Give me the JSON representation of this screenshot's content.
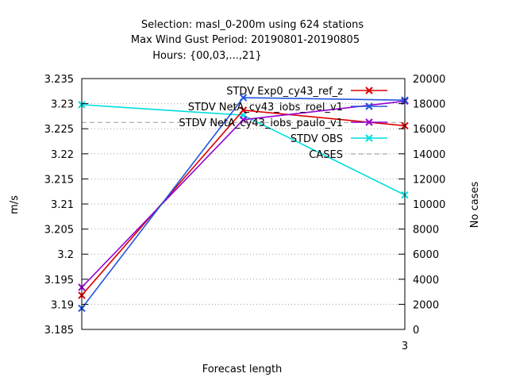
{
  "chart_data": {
    "type": "line",
    "title": [
      "Selection: masl_0-200m using   624 stations",
      "Max Wind Gust   Period: 20190801-20190805",
      "Hours: {00,03,...,21}"
    ],
    "xlabel": "Forecast length",
    "ylabel": "m/s",
    "y2label": "No cases",
    "xlim": [
      0,
      3
    ],
    "ylim": [
      3.185,
      3.235
    ],
    "y2lim": [
      0,
      20000
    ],
    "x_ticks": [
      3
    ],
    "y_ticks": [
      "3.185",
      "3.19",
      "3.195",
      "3.2",
      "3.205",
      "3.21",
      "3.215",
      "3.22",
      "3.225",
      "3.23",
      "3.235"
    ],
    "y2_ticks": [
      "0",
      "2000",
      "4000",
      "6000",
      "8000",
      "10000",
      "12000",
      "14000",
      "16000",
      "18000",
      "20000"
    ],
    "legend_position": "top-right",
    "series": [
      {
        "name": "STDV Exp0_cy43_ref_z",
        "axis": "y",
        "color": "#dd0000",
        "marker": "x",
        "x": [
          0,
          1.5,
          3
        ],
        "values": [
          3.1918,
          3.2287,
          3.2256
        ]
      },
      {
        "name": "STDV NetA_cy43_iobs_roel_v1",
        "axis": "y",
        "color": "#2255dd",
        "marker": "x",
        "x": [
          0,
          1.5,
          3
        ],
        "values": [
          3.1892,
          3.2312,
          3.2307
        ]
      },
      {
        "name": "STDV NetA_cy43_iobs_paulo_v1",
        "axis": "y",
        "color": "#9400d3",
        "marker": "x",
        "x": [
          0,
          1.5,
          3
        ],
        "values": [
          3.1934,
          3.2268,
          3.2305
        ]
      },
      {
        "name": "STDV OBS",
        "axis": "y",
        "color": "#00dddd",
        "marker": "x",
        "x": [
          0,
          1.5,
          3
        ],
        "values": [
          3.2298,
          3.2277,
          3.2118
        ]
      },
      {
        "name": "CASES",
        "axis": "y2",
        "color": "#999999",
        "marker": "none",
        "dashed": true,
        "x": [
          0,
          1.5,
          3
        ],
        "values": [
          16500,
          16500,
          16500
        ]
      }
    ]
  }
}
